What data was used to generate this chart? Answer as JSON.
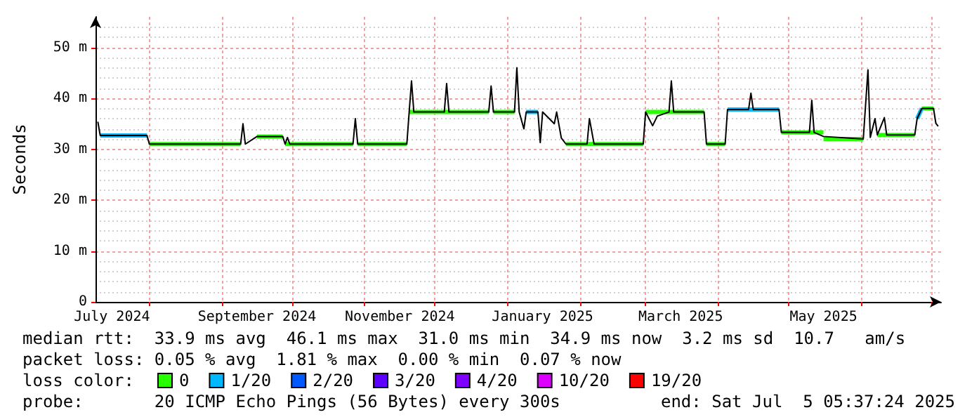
{
  "chart_data": {
    "type": "line",
    "ylabel": "Seconds",
    "legend_title": "loss color:",
    "legend": "bottom",
    "grid": true,
    "marker": "none",
    "xlim": [
      "2024-07-09",
      "2025-07-05T05:37"
    ],
    "xticks": [
      {
        "value": "2024-07-16",
        "label": "July 2024"
      },
      {
        "value": "2024-09-16",
        "label": "September 2024"
      },
      {
        "value": "2024-11-16",
        "label": "November 2024"
      },
      {
        "value": "2025-01-16",
        "label": "January 2025"
      },
      {
        "value": "2025-03-16",
        "label": "March 2025"
      },
      {
        "value": "2025-05-16",
        "label": "May 2025"
      },
      {
        "value": "2024-08-01",
        "label": null
      },
      {
        "value": "2024-09-01",
        "label": null
      },
      {
        "value": "2024-10-01",
        "label": null
      },
      {
        "value": "2024-11-01",
        "label": null
      },
      {
        "value": "2024-12-01",
        "label": null
      },
      {
        "value": "2025-01-01",
        "label": null
      },
      {
        "value": "2025-02-01",
        "label": null
      },
      {
        "value": "2025-03-01",
        "label": null
      },
      {
        "value": "2025-04-01",
        "label": null
      },
      {
        "value": "2025-05-01",
        "label": null
      },
      {
        "value": "2025-06-01",
        "label": null
      },
      {
        "value": "2025-07-01",
        "label": null
      }
    ],
    "ylim": [
      0,
      56
    ],
    "yticks": [
      0,
      {
        "value": 10,
        "label": "10 m"
      },
      {
        "value": 20,
        "label": "20 m"
      },
      {
        "value": 30,
        "label": "30 m"
      },
      {
        "value": 40,
        "label": "40 m"
      },
      {
        "value": 50,
        "label": "50 m"
      }
    ],
    "series": [
      {
        "color": "#000000",
        "x": [
          "2024-07-10",
          "2024-07-11",
          "2024-07-31",
          "2024-08-01",
          "2024-09-09",
          "2024-09-10",
          "2024-09-11",
          "2024-09-16",
          "2024-09-27",
          "2024-09-28",
          "2024-09-29",
          "2024-09-30",
          "2024-10-27",
          "2024-10-28",
          "2024-10-29",
          "2024-11-19",
          "2024-11-20",
          "2024-11-21",
          "2024-11-22",
          "2024-12-05",
          "2024-12-06",
          "2024-12-07",
          "2024-12-24",
          "2024-12-25",
          "2024-12-26",
          "2025-01-04",
          "2025-01-05",
          "2025-01-06",
          "2025-01-08",
          "2025-01-09",
          "2025-01-14",
          "2025-01-15",
          "2025-01-16",
          "2025-01-21",
          "2025-01-22",
          "2025-01-24",
          "2025-01-26",
          "2025-02-04",
          "2025-02-05",
          "2025-02-07",
          "2025-02-28",
          "2025-03-01",
          "2025-03-04",
          "2025-03-06",
          "2025-03-11",
          "2025-03-12",
          "2025-03-13",
          "2025-03-26",
          "2025-03-27",
          "2025-04-04",
          "2025-04-05",
          "2025-04-14",
          "2025-04-15",
          "2025-04-16",
          "2025-04-27",
          "2025-04-28",
          "2025-05-10",
          "2025-05-11",
          "2025-05-12",
          "2025-05-16",
          "2025-06-02",
          "2025-06-04",
          "2025-06-05",
          "2025-06-07",
          "2025-06-08",
          "2025-06-11",
          "2025-06-12",
          "2025-06-24",
          "2025-06-25",
          "2025-06-27",
          "2025-07-02",
          "2025-07-03",
          "2025-07-04"
        ],
        "values": [
          35.4,
          32.7,
          32.7,
          31.0,
          31.0,
          35.0,
          31.0,
          32.5,
          32.5,
          31.0,
          32.3,
          31.0,
          31.0,
          36.0,
          31.0,
          31.0,
          37.3,
          43.4,
          37.3,
          37.3,
          42.9,
          37.3,
          37.3,
          42.4,
          37.3,
          37.3,
          46.0,
          37.3,
          34.0,
          37.3,
          37.3,
          31.3,
          37.3,
          35.0,
          37.3,
          32.2,
          31.0,
          31.0,
          36.0,
          31.0,
          31.0,
          37.3,
          34.6,
          36.5,
          37.3,
          43.4,
          37.3,
          37.3,
          31.0,
          31.0,
          37.8,
          37.8,
          41.0,
          37.8,
          37.8,
          33.3,
          33.3,
          39.6,
          33.3,
          32.5,
          32.0,
          45.6,
          32.3,
          36.0,
          32.8,
          36.2,
          32.8,
          32.8,
          36.0,
          38.0,
          38.0,
          35.1,
          34.5
        ]
      },
      {
        "name": "0",
        "color": "#26ff00",
        "x": [
          "2024-08-01",
          "2024-09-09",
          null,
          "2024-09-16",
          "2024-09-27",
          null,
          "2024-09-28",
          "2024-10-27",
          null,
          "2024-10-29",
          "2024-11-19",
          null,
          "2024-11-20",
          "2024-12-24",
          null,
          "2024-12-26",
          "2025-01-04",
          null,
          "2025-01-26",
          "2025-02-28",
          null,
          "2025-03-01",
          "2025-03-26",
          null,
          "2025-03-27",
          "2025-04-04",
          null,
          "2025-04-28",
          "2025-05-16",
          null,
          "2025-05-16",
          "2025-06-02",
          null,
          "2025-06-08",
          "2025-06-24",
          null,
          "2025-06-27",
          "2025-07-02"
        ],
        "values": [
          31.0,
          31.0,
          null,
          32.5,
          32.5,
          null,
          31.0,
          31.0,
          null,
          31.0,
          31.0,
          null,
          37.3,
          37.3,
          null,
          37.3,
          37.3,
          null,
          31.0,
          31.0,
          null,
          37.3,
          37.3,
          null,
          31.0,
          31.0,
          null,
          33.3,
          33.3,
          null,
          32.0,
          32.0,
          null,
          32.8,
          32.8,
          null,
          38.0,
          38.0
        ]
      },
      {
        "name": "1/20",
        "color": "#00b8ff",
        "x": [
          "2024-07-11",
          "2024-07-31",
          null,
          "2025-01-09",
          "2025-01-14",
          null,
          "2025-04-05",
          "2025-04-27",
          null,
          "2025-06-25",
          "2025-06-27"
        ],
        "values": [
          32.7,
          32.7,
          null,
          37.3,
          37.3,
          null,
          37.8,
          37.8,
          null,
          36.0,
          38.0
        ]
      },
      {
        "name": "2/20",
        "color": "#0059ff"
      },
      {
        "name": "3/20",
        "color": "#5e00ff"
      },
      {
        "name": "4/20",
        "color": "#7e00ff"
      },
      {
        "name": "10/20",
        "color": "#dd00ff"
      },
      {
        "name": "19/20",
        "color": "#ff0000"
      }
    ],
    "annotations": [
      "median rtt:  33.9 ms avg  46.1 ms max  31.0 ms min  34.9 ms now  3.2 ms sd  10.7   am/s",
      "packet loss: 0.05 % avg  1.81 % max  0.00 % min  0.07 % now",
      "probe:       20 ICMP Echo Pings (56 Bytes) every 300s",
      "end: Sat Jul  5 05:37:24 2025"
    ]
  }
}
